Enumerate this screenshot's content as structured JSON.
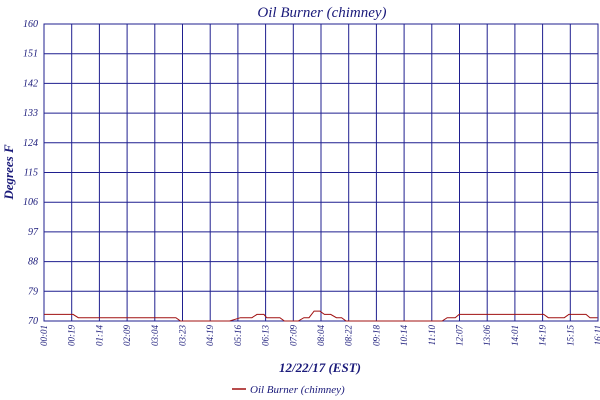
{
  "colors": {
    "grid": "#1f1f8f",
    "line": "#a01010",
    "text": "#1a1a7a",
    "background": "#ffffff"
  },
  "chart_data": {
    "type": "line",
    "title": "Oil Burner (chimney)",
    "xlabel": "12/22/17 (EST)",
    "ylabel": "Degrees F",
    "ylim": [
      70,
      160
    ],
    "yticks": [
      70,
      79,
      88,
      97,
      106,
      115,
      124,
      133,
      142,
      151,
      160
    ],
    "ytick_labels": [
      "70",
      "79",
      "88",
      "97",
      "106",
      "115",
      "124",
      "133",
      "142",
      "151",
      "160"
    ],
    "xlim_minutes": [
      1,
      971
    ],
    "xticks": [
      "00:01",
      "00:19",
      "01:14",
      "02:09",
      "03:04",
      "03:23",
      "04:19",
      "05:16",
      "06:13",
      "07:09",
      "08:04",
      "08:22",
      "09:18",
      "10:14",
      "11:10",
      "12:07",
      "13:06",
      "14:01",
      "14:19",
      "15:15",
      "16:11"
    ],
    "xtick_minutes": [
      1,
      19,
      74,
      129,
      184,
      203,
      259,
      316,
      373,
      429,
      484,
      502,
      558,
      614,
      670,
      727,
      786,
      841,
      859,
      915,
      971
    ],
    "grid": true,
    "legend_position": "bottom-center",
    "series": [
      {
        "name": "Oil Burner (chimney)",
        "x": [
          1,
          52,
          61,
          110,
          112,
          166,
          172,
          180,
          230,
          231,
          232,
          240,
          249,
          261,
          268,
          271,
          280,
          290,
          301,
          309,
          326,
          345,
          360,
          365,
          374,
          386,
          391,
          401,
          405,
          414,
          422,
          429,
          435,
          446,
          456,
          465,
          474,
          484,
          492,
          498,
          503,
          513,
          519,
          522,
          530,
          535,
          544,
          553,
          561,
          570,
          577,
          582,
          590,
          594,
          599,
          607,
          618,
          635,
          638,
          646,
          655,
          659,
          665,
          674,
          678,
          686,
          692,
          698,
          707,
          718,
          721,
          728,
          737,
          743,
          751,
          757,
          773,
          779,
          787,
          793,
          800,
          806,
          812,
          823,
          834,
          844,
          846,
          852,
          860,
          864,
          870,
          876,
          884,
          892,
          898,
          904,
          912,
          920,
          928,
          936,
          948,
          950,
          957,
          963,
          970
        ],
        "y": [
          72,
          72,
          71,
          71,
          71,
          71,
          71,
          71,
          71,
          71,
          71,
          70,
          70,
          70,
          70,
          70,
          70,
          70,
          70,
          70,
          70,
          71,
          71,
          71,
          72,
          72,
          71,
          71,
          71,
          71,
          70,
          70,
          70,
          70,
          71,
          71,
          73,
          73,
          72,
          72,
          72,
          71,
          71,
          71,
          70,
          70,
          70,
          70,
          70,
          70,
          70,
          70,
          70,
          70,
          70,
          70,
          70,
          70,
          70,
          70,
          70,
          70,
          70,
          70,
          70,
          70,
          70,
          70,
          71,
          71,
          71,
          72,
          72,
          72,
          72,
          72,
          72,
          72,
          72,
          72,
          72,
          72,
          72,
          72,
          72,
          72,
          72,
          72,
          72,
          72,
          72,
          72,
          71,
          71,
          71,
          71,
          71,
          72,
          72,
          72,
          72,
          72,
          71,
          71,
          71
        ]
      }
    ]
  },
  "legend": {
    "label": "Oil Burner (chimney)"
  }
}
